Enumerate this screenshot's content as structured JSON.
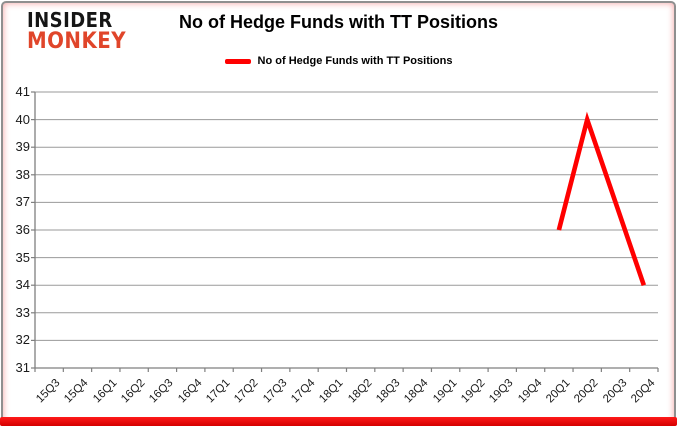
{
  "header": {
    "logo": {
      "line1": "INSIDER",
      "line2": "MONKEY"
    },
    "title": "No of Hedge Funds with TT Positions"
  },
  "legend": {
    "label": "No of Hedge Funds with TT Positions"
  },
  "colors": {
    "series": "#ff0000",
    "logo_black": "#151515",
    "logo_red": "#e0452a",
    "grid": "#9a9a9a",
    "axis": "#7f7f7f",
    "frame_border": "#8f8f8f",
    "bottom_bar_top": "#ff1a1a",
    "bottom_bar_bottom": "#d40000"
  },
  "chart_data": {
    "type": "line",
    "title": "No of Hedge Funds with TT Positions",
    "categories": [
      "15Q3",
      "15Q4",
      "16Q1",
      "16Q2",
      "16Q3",
      "16Q4",
      "17Q1",
      "17Q2",
      "17Q3",
      "17Q4",
      "18Q1",
      "18Q2",
      "18Q3",
      "18Q4",
      "19Q1",
      "19Q2",
      "19Q3",
      "19Q4",
      "20Q1",
      "20Q2",
      "20Q3",
      "20Q4"
    ],
    "series": [
      {
        "name": "No of Hedge Funds with TT Positions",
        "color": "#ff0000",
        "values": [
          null,
          null,
          null,
          null,
          null,
          null,
          null,
          null,
          null,
          null,
          null,
          null,
          null,
          null,
          null,
          null,
          null,
          null,
          36,
          40,
          37,
          34
        ]
      }
    ],
    "xlabel": "",
    "ylabel": "",
    "ylim": [
      31,
      41
    ],
    "ytick_step": 1,
    "grid": true,
    "legend_position": "top-center"
  }
}
